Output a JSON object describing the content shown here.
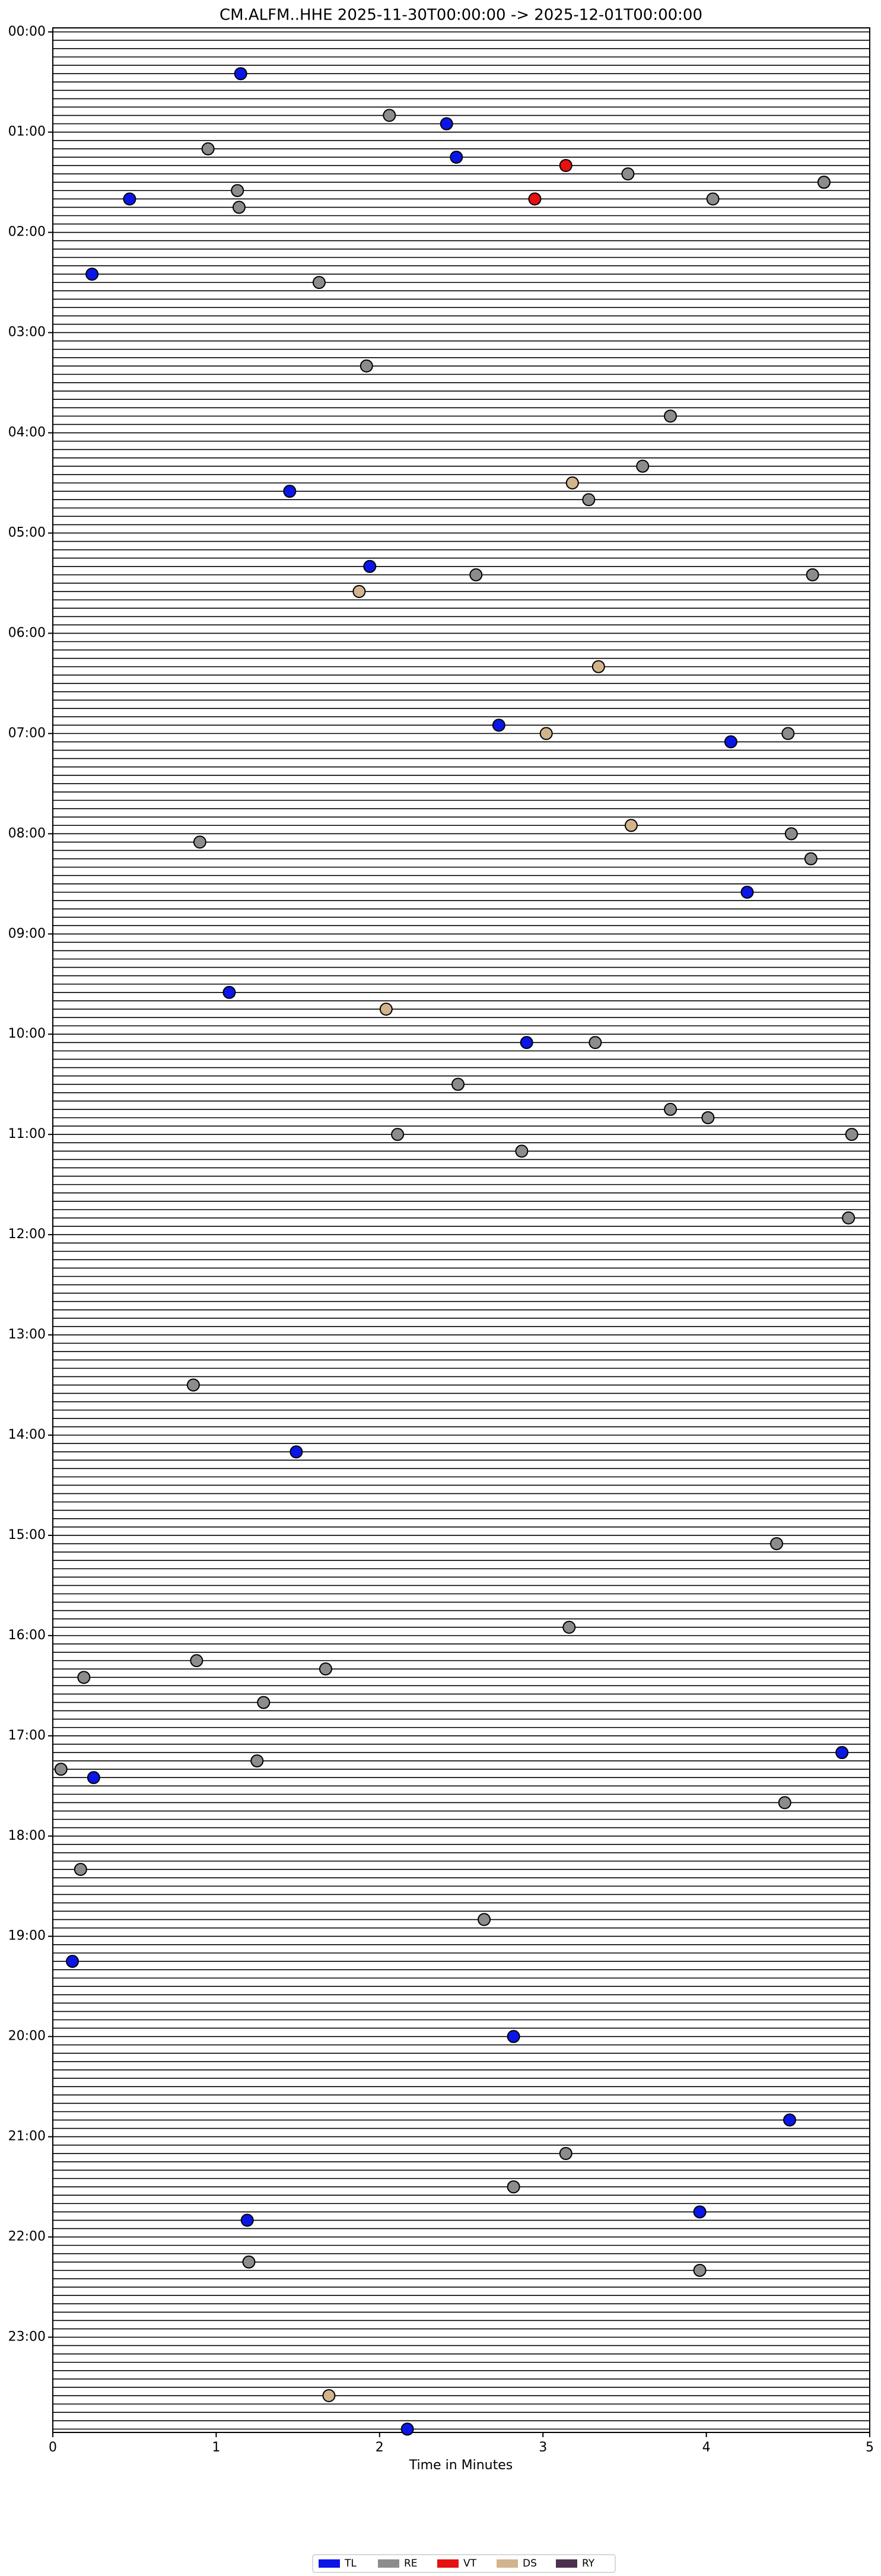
{
  "chart_data": {
    "type": "helicorder",
    "title": "CM.ALFM..HHE  2025-11-30T00:00:00 -> 2025-12-01T00:00:00",
    "x_label": "Time in Minutes",
    "xlim": [
      0,
      5
    ],
    "xticks": [
      0,
      1,
      2,
      3,
      4,
      5
    ],
    "ylim": [
      -0.04,
      23.95
    ],
    "invert_y": true,
    "yticks": [
      {
        "value": 0,
        "label": "00:00"
      },
      {
        "value": 1,
        "label": "01:00"
      },
      {
        "value": 2,
        "label": "02:00"
      },
      {
        "value": 3,
        "label": "03:00"
      },
      {
        "value": 4,
        "label": "04:00"
      },
      {
        "value": 5,
        "label": "05:00"
      },
      {
        "value": 6,
        "label": "06:00"
      },
      {
        "value": 7,
        "label": "07:00"
      },
      {
        "value": 8,
        "label": "08:00"
      },
      {
        "value": 9,
        "label": "09:00"
      },
      {
        "value": 10,
        "label": "10:00"
      },
      {
        "value": 11,
        "label": "11:00"
      },
      {
        "value": 12,
        "label": "12:00"
      },
      {
        "value": 13,
        "label": "13:00"
      },
      {
        "value": 14,
        "label": "14:00"
      },
      {
        "value": 15,
        "label": "15:00"
      },
      {
        "value": 16,
        "label": "16:00"
      },
      {
        "value": 17,
        "label": "17:00"
      },
      {
        "value": 18,
        "label": "18:00"
      },
      {
        "value": 19,
        "label": "19:00"
      },
      {
        "value": 20,
        "label": "20:00"
      },
      {
        "value": 21,
        "label": "21:00"
      },
      {
        "value": 22,
        "label": "22:00"
      },
      {
        "value": 23,
        "label": "23:00"
      }
    ],
    "legend": "lower center",
    "series": [
      {
        "name": "TL",
        "color": "#0a16e8",
        "x": [
          1.15,
          2.41,
          2.47,
          4.72,
          0.47,
          0.24,
          1.45,
          1.94,
          2.73,
          4.15,
          4.25,
          1.08,
          2.9,
          1.49,
          4.83,
          0.25,
          0.12,
          2.82,
          4.51,
          3.96,
          1.19,
          2.17
        ],
        "y": [
          0.417,
          0.917,
          1.25,
          1.5,
          1.667,
          2.417,
          4.583,
          5.333,
          6.917,
          7.083,
          8.583,
          9.583,
          10.083,
          14.167,
          17.167,
          17.417,
          19.25,
          20.0,
          20.833,
          21.75,
          21.833,
          23.917
        ]
      },
      {
        "name": "RE",
        "color": "#8c8c8c",
        "x": [
          2.06,
          0.95,
          3.52,
          4.72,
          1.13,
          4.04,
          1.14,
          1.63,
          1.92,
          3.78,
          3.61,
          3.28,
          2.59,
          4.65,
          4.5,
          0.9,
          4.52,
          4.64,
          3.32,
          2.48,
          3.78,
          4.01,
          2.11,
          4.89,
          2.87,
          4.87,
          0.86,
          4.43,
          3.16,
          0.19,
          0.88,
          1.67,
          1.29,
          0.05,
          1.25,
          4.48,
          0.17,
          2.64,
          3.14,
          2.82,
          1.2,
          3.96
        ],
        "y": [
          0.833,
          1.167,
          1.417,
          1.5,
          1.583,
          1.667,
          1.75,
          2.5,
          3.333,
          3.833,
          4.333,
          4.667,
          5.417,
          5.417,
          7.0,
          8.083,
          8.0,
          8.25,
          10.083,
          10.5,
          10.75,
          10.833,
          11.0,
          11.0,
          11.167,
          11.833,
          13.5,
          15.083,
          15.917,
          16.417,
          16.25,
          16.333,
          16.667,
          17.333,
          17.25,
          17.667,
          18.333,
          18.833,
          21.167,
          21.5,
          22.25,
          22.333
        ]
      },
      {
        "name": "VT",
        "color": "#e81010",
        "x": [
          3.14,
          2.95
        ],
        "y": [
          1.333,
          1.667
        ]
      },
      {
        "name": "DS",
        "color": "#d2b48c",
        "x": [
          3.18,
          1.875,
          3.34,
          3.02,
          3.54,
          2.04,
          1.69
        ],
        "y": [
          4.5,
          5.583,
          6.333,
          7.0,
          7.917,
          9.75,
          23.583
        ]
      },
      {
        "name": "RY",
        "color": "#4b3050",
        "x": [],
        "y": []
      }
    ]
  }
}
